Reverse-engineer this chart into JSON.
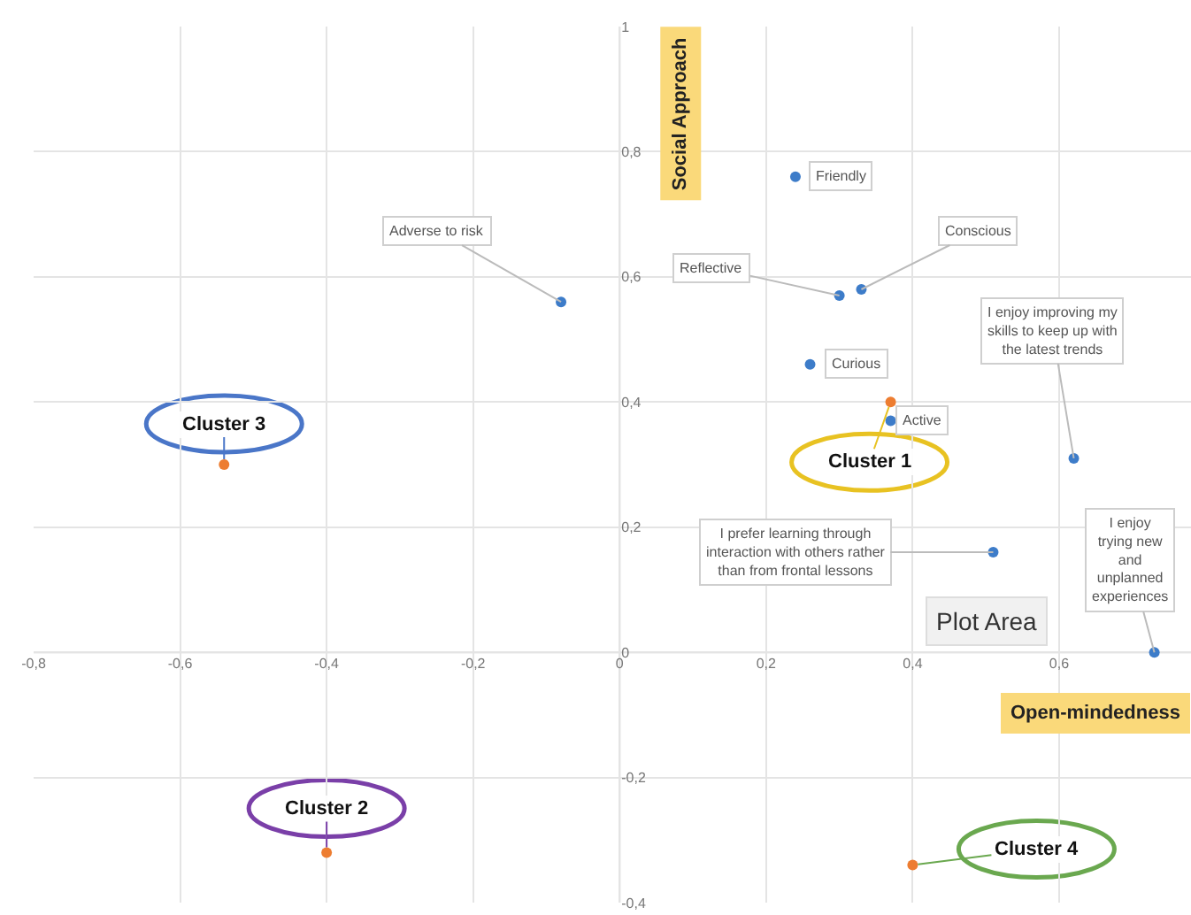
{
  "chart_data": {
    "type": "scatter",
    "xlabel": "Open-mindedness",
    "ylabel": "Social Approach",
    "xlim": [
      -0.8,
      0.78
    ],
    "ylim": [
      -0.4,
      1
    ],
    "xticks": [
      {
        "value": -0.8,
        "label": "-0,8"
      },
      {
        "value": -0.6,
        "label": "-0,6"
      },
      {
        "value": -0.4,
        "label": "-0,4"
      },
      {
        "value": -0.2,
        "label": "-0,2"
      },
      0,
      {
        "value": 0.2,
        "label": "0,2"
      },
      {
        "value": 0.4,
        "label": "0,4"
      },
      {
        "value": 0.6,
        "label": "0,6"
      }
    ],
    "yticks": [
      {
        "value": -0.4,
        "label": "-0,4"
      },
      {
        "value": -0.2,
        "label": "-0,2"
      },
      0,
      {
        "value": 0.2,
        "label": "0,2"
      },
      {
        "value": 0.4,
        "label": "0,4"
      },
      {
        "value": 0.6,
        "label": "0,6"
      },
      {
        "value": 0.8,
        "label": "0,8"
      },
      1
    ],
    "grid": true,
    "marker": "circle",
    "series": [
      {
        "color": "#3d7cc9",
        "x": [
          -0.08,
          0.24,
          0.3,
          0.33,
          0.26,
          0.37,
          0.62,
          0.51,
          0.73
        ],
        "values": [
          0.56,
          0.76,
          0.57,
          0.58,
          0.46,
          0.37,
          0.31,
          0.16,
          0.0
        ]
      },
      {
        "color": "#ed7d31",
        "x": [
          0.37,
          -0.54,
          -0.4,
          0.4
        ],
        "values": [
          0.4,
          0.3,
          -0.32,
          -0.34
        ]
      }
    ],
    "annotations": [
      {
        "text": "Adverse to risk",
        "x": -0.08,
        "y": 0.56
      },
      {
        "text": "Friendly",
        "x": 0.24,
        "y": 0.76
      },
      {
        "text": "Reflective",
        "x": 0.3,
        "y": 0.57
      },
      {
        "text": "Conscious",
        "x": 0.33,
        "y": 0.58
      },
      {
        "text": "Curious",
        "x": 0.26,
        "y": 0.46
      },
      {
        "text": "Active",
        "x": 0.37,
        "y": 0.37
      },
      {
        "text": "I enjoy improving my skills to keep up with the latest trends",
        "x": 0.62,
        "y": 0.31
      },
      {
        "text": "I prefer learning through interaction with others rather than from frontal lessons",
        "x": 0.51,
        "y": 0.16
      },
      {
        "text": "I enjoy trying new and unplanned experiences",
        "x": 0.73,
        "y": 0.0
      },
      {
        "text": "Cluster 1",
        "x": 0.37,
        "y": 0.4
      },
      {
        "text": "Cluster 3",
        "x": -0.54,
        "y": 0.3
      },
      {
        "text": "Cluster 2",
        "x": -0.4,
        "y": -0.32
      },
      {
        "text": "Cluster 4",
        "x": 0.4,
        "y": -0.34
      },
      "Plot Area"
    ]
  }
}
